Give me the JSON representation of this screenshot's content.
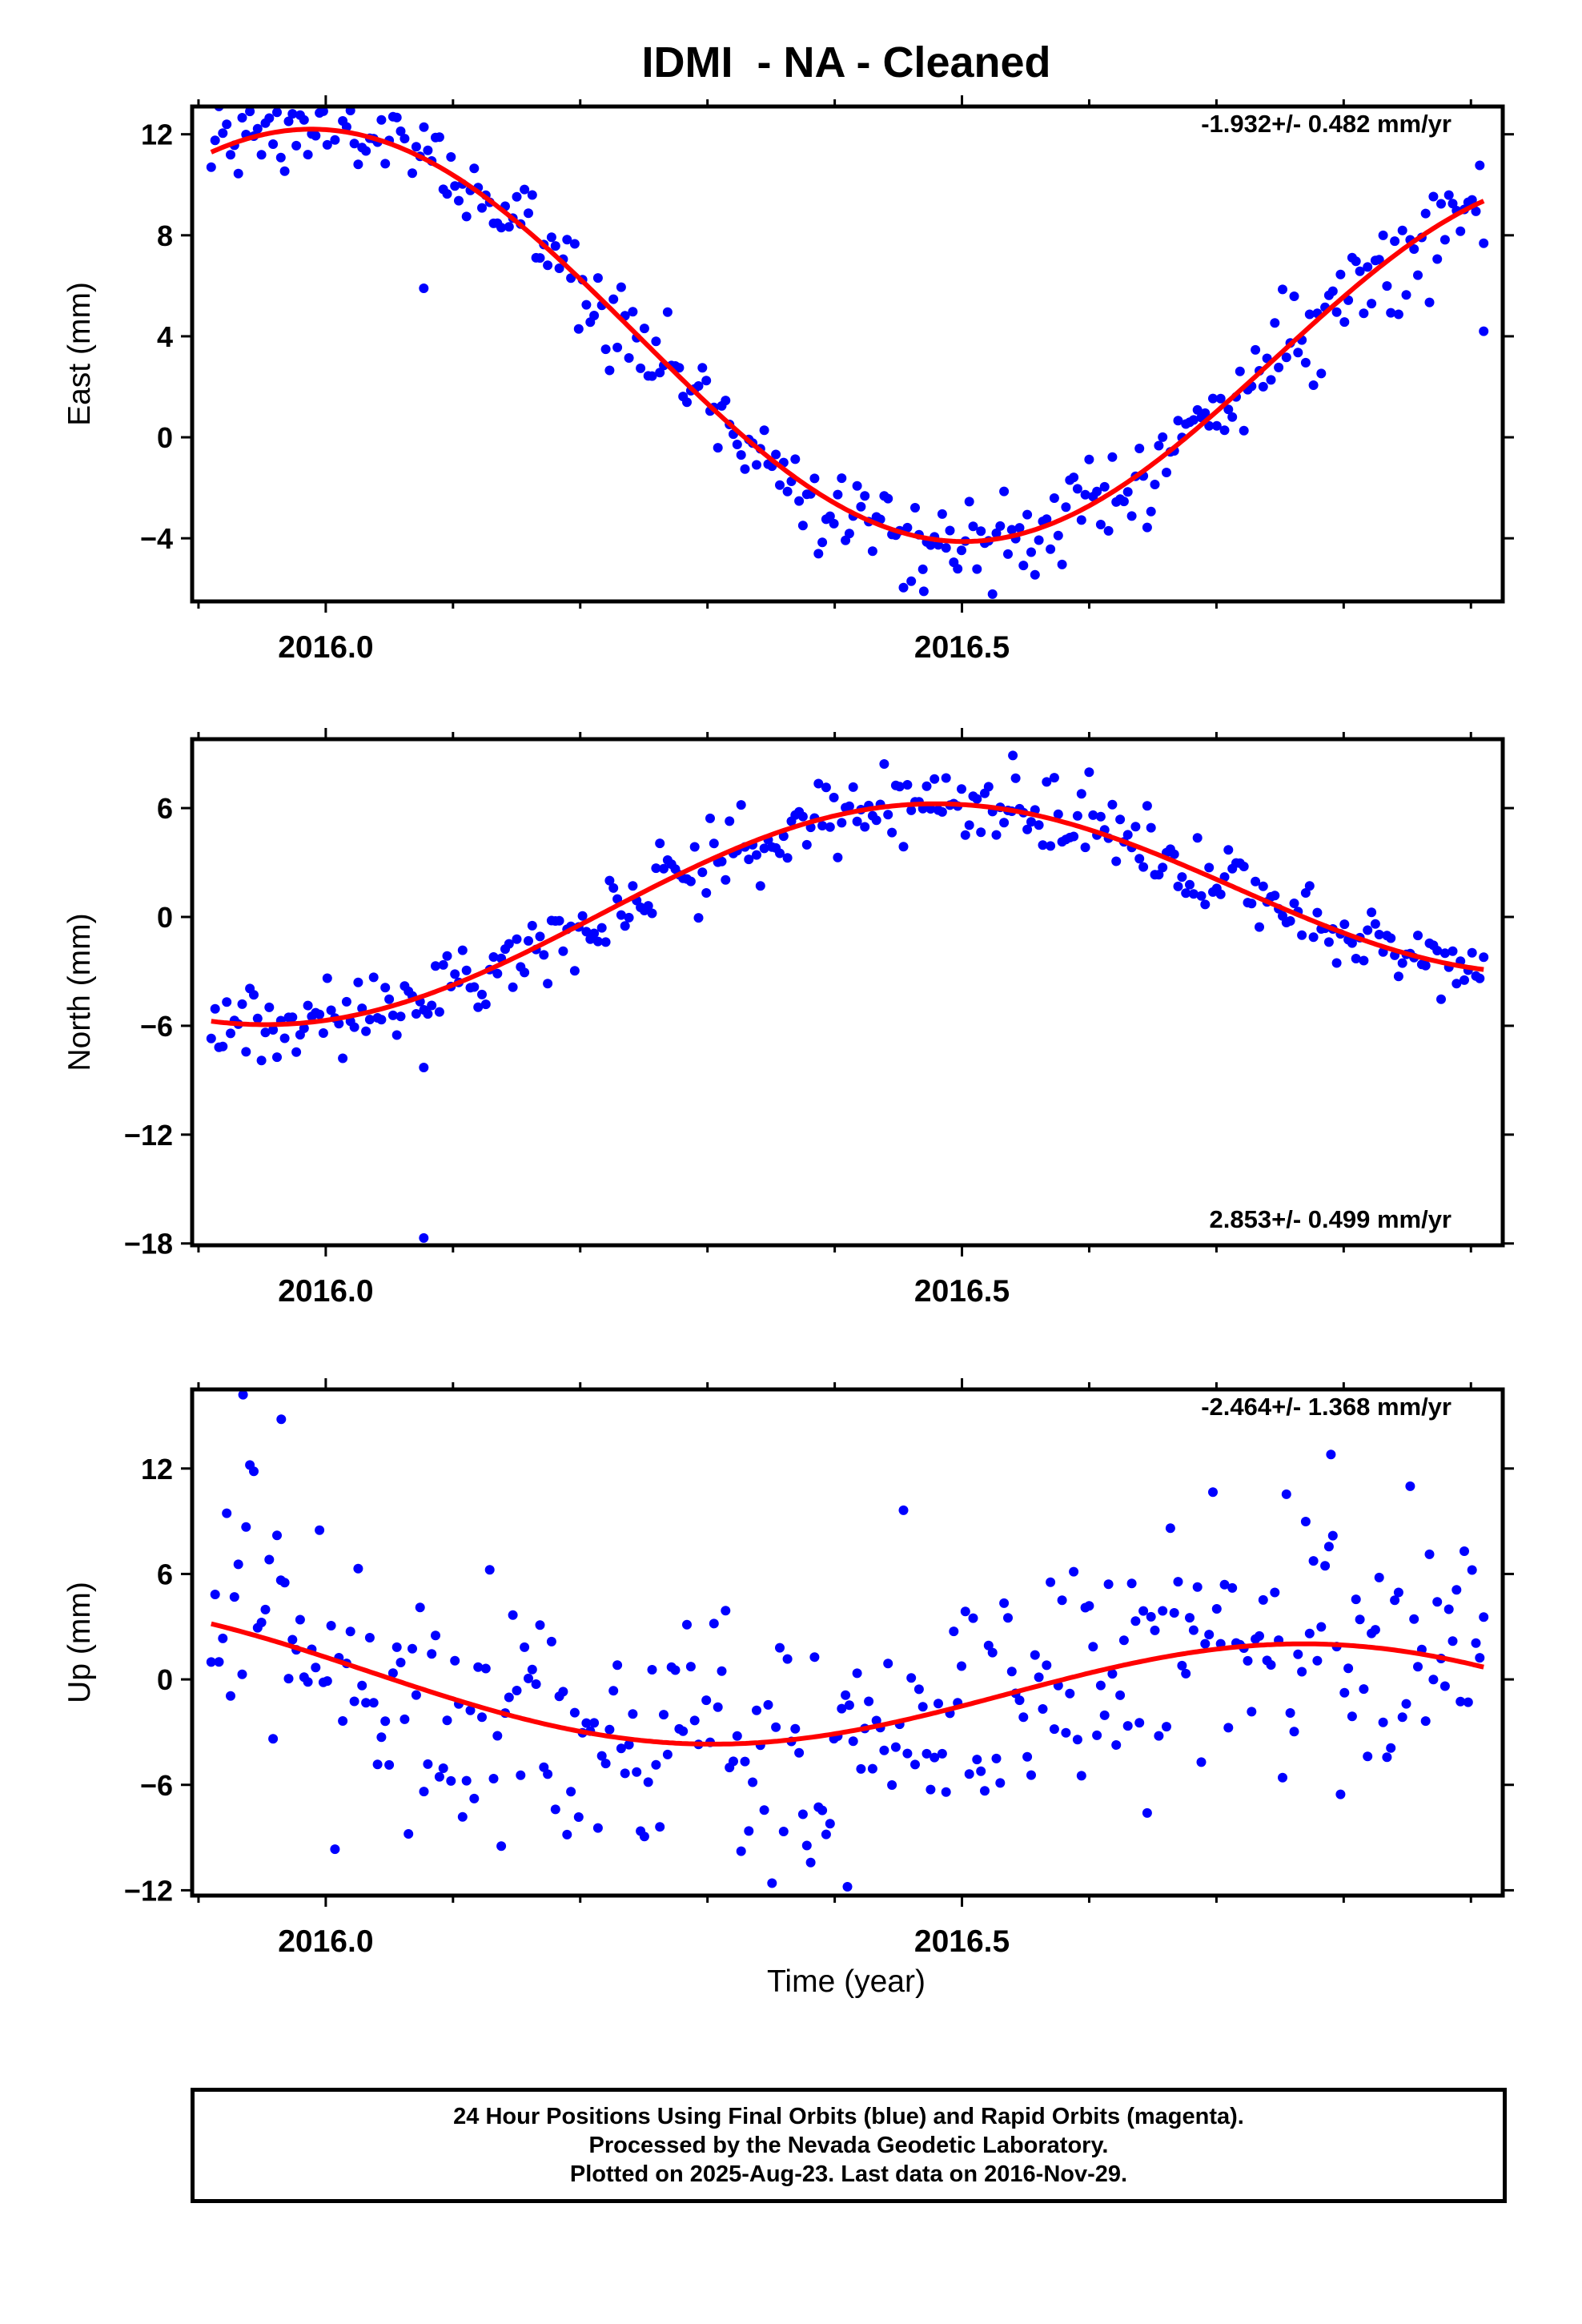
{
  "title": "IDMI  - NA - Cleaned",
  "colors": {
    "points": "#0000ff",
    "fit": "#ff0000",
    "axes": "#000000"
  },
  "xaxis": {
    "label": "Time (year)",
    "range": [
      2015.895,
      2016.925
    ],
    "ticks": [
      2016.0,
      2016.5
    ],
    "tick_labels": [
      "2016.0",
      "2016.5"
    ]
  },
  "chart_data": [
    {
      "type": "scatter",
      "component": "East",
      "ylabel": "East (mm)",
      "ylim": [
        -6.5,
        13.1
      ],
      "yticks": [
        -4,
        0,
        4,
        8,
        12
      ],
      "ytick_labels": [
        "−4",
        "0",
        "4",
        "8",
        "12"
      ],
      "annotation": "-1.932+/- 0.482 mm/yr",
      "annotation_position": "top-right",
      "grid": false,
      "fit": {
        "name": "",
        "formula": "3.717 + 7.675*cos(2*pi*(t-2015.995)) - 1.932*(t-2016.411)",
        "start": 2015.91,
        "end": 2016.91
      },
      "points": {
        "name": "",
        "t_start": 2015.91,
        "t_end": 2016.91,
        "count": 330,
        "noise_mm": 0.9,
        "outliers": [
          {
            "t": 2016.077,
            "y": 5.9
          },
          {
            "t": 2016.47,
            "y": -6.1
          },
          {
            "t": 2016.91,
            "y": 4.2
          }
        ]
      }
    },
    {
      "type": "scatter",
      "component": "North",
      "ylabel": "North (mm)",
      "ylim": [
        -18.1,
        9.8
      ],
      "yticks": [
        -18,
        -12,
        -6,
        0,
        6
      ],
      "ytick_labels": [
        "−18",
        "−12",
        "−6",
        "0",
        "6"
      ],
      "annotation": "2.853+/- 0.499 mm/yr",
      "annotation_position": "bottom-right",
      "grid": false,
      "fit": {
        "name": "",
        "formula": "0.707 + 5.355*cos(2*pi*(t-2016.466)) + 2.853*(t-2016.411)",
        "start": 2015.91,
        "end": 2016.91
      },
      "points": {
        "name": "",
        "t_start": 2015.91,
        "t_end": 2016.91,
        "count": 330,
        "noise_mm": 1.0,
        "outliers": [
          {
            "t": 2016.077,
            "y": -8.3
          },
          {
            "t": 2016.077,
            "y": -17.7
          },
          {
            "t": 2016.54,
            "y": 8.9
          }
        ]
      }
    },
    {
      "type": "scatter",
      "component": "Up",
      "ylabel": "Up (mm)",
      "ylim": [
        -12.3,
        16.5
      ],
      "yticks": [
        -12,
        -6,
        0,
        6,
        12
      ],
      "ytick_labels": [
        "−12",
        "−6",
        "0",
        "6",
        "12"
      ],
      "annotation": "-2.464+/- 1.368 mm/yr",
      "annotation_position": "top-right",
      "grid": false,
      "fit": {
        "name": "",
        "formula": "-0.523 + 3.447*cos(2*pi*(t-2015.786)) - 2.464*(t-2016.411)",
        "start": 2015.91,
        "end": 2016.91
      },
      "points": {
        "name": "",
        "t_start": 2015.91,
        "t_end": 2016.91,
        "count": 330,
        "noise_mm": 4.0,
        "outliers": [
          {
            "t": 2015.935,
            "y": 16.2
          },
          {
            "t": 2015.965,
            "y": 14.8
          },
          {
            "t": 2016.41,
            "y": -11.8
          },
          {
            "t": 2016.79,
            "y": 12.8
          }
        ]
      }
    }
  ],
  "footer": {
    "line1": "24 Hour Positions Using Final Orbits (blue) and Rapid Orbits (magenta).",
    "line2": "Processed by the Nevada Geodetic Laboratory.",
    "line3": "Plotted on 2025-Aug-23. Last data on 2016-Nov-29."
  }
}
